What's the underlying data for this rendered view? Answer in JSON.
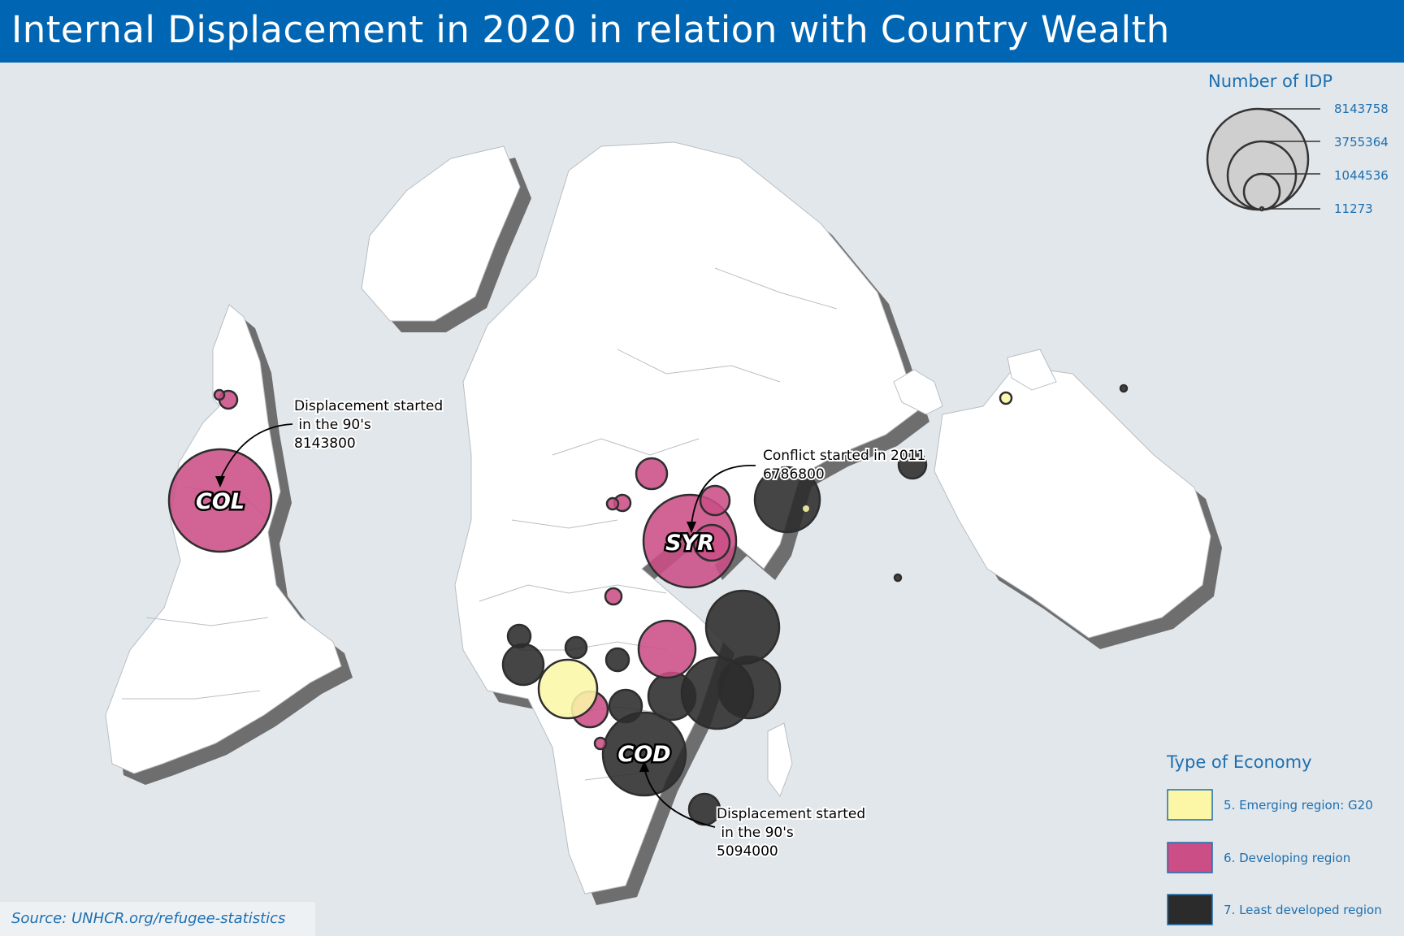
{
  "title": "Internal Displacement in 2020 in relation with Country Wealth",
  "source": "Source: UNHCR.org/refugee-statistics",
  "size_legend": {
    "title": "Number of IDP",
    "values": [
      "8143758",
      "3755364",
      "1044536",
      "11273"
    ]
  },
  "type_legend": {
    "title": "Type of Economy",
    "items": [
      {
        "label": "5. Emerging region: G20",
        "color": "#fbf7a6"
      },
      {
        "label": "6. Developing region",
        "color": "#cb4e86"
      },
      {
        "label": "7. Least developed region",
        "color": "#2b2b2b"
      }
    ]
  },
  "country_labels": {
    "col": "COL",
    "syr": "SYR",
    "cod": "COD"
  },
  "annotations": {
    "col": {
      "line1": "Displacement started",
      "line2": " in the 90's",
      "line3": "8143800"
    },
    "syr": {
      "line1": "Conflict started in 2011",
      "line2": "6786800"
    },
    "cod": {
      "line1": "Displacement started",
      "line2": " in the 90's",
      "line3": "5094000"
    }
  },
  "colors": {
    "header": "#0066b3",
    "ocean": "#e2e7eb",
    "land": "#ffffff",
    "shadow": "#6e6e6e",
    "emerging": "#fbf7a6",
    "developing": "#cb4e86",
    "least_developed": "#2b2b2b",
    "legend_text": "#1d6fb0"
  }
}
